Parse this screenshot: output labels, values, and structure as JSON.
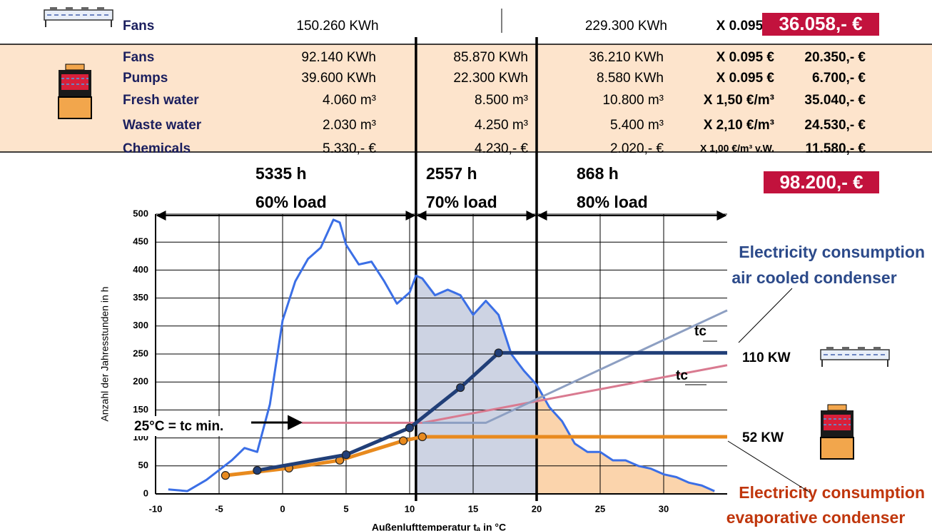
{
  "table": {
    "air_cooled_row": {
      "label": "Fans",
      "col_60": "150.260 KWh",
      "col_80": "229.300 KWh",
      "rate": "X 0.095 €",
      "cost": "36.058,- €"
    },
    "evaporative_rows": [
      [
        "Fans",
        "92.140 KWh",
        "85.870 KWh",
        "36.210 KWh",
        "X 0.095 €",
        "20.350,- €"
      ],
      [
        "Pumps",
        "39.600 KWh",
        "22.300 KWh",
        "8.580 KWh",
        "X 0.095 €",
        "6.700,- €"
      ],
      [
        "Fresh water",
        "4.060 m³",
        "8.500 m³",
        "10.800 m³",
        "X 1,50 €/m³",
        "35.040,- €"
      ],
      [
        "Waste water",
        "2.030 m³",
        "4.250 m³",
        "5.400 m³",
        "X 2,10 €/m³",
        "24.530,- €"
      ],
      [
        "Chemicals",
        "5.330,-  €",
        "4.230,- €",
        "2.020,- €",
        "X 1,00 €/m³ v.W.",
        "11.580,- €"
      ]
    ],
    "hours": [
      "5335 h",
      "2557 h",
      "868 h"
    ],
    "loads": [
      "60% load",
      "70% load",
      "80% load"
    ],
    "total": "98.200,- €"
  },
  "chart_data": {
    "type": "line",
    "x_label": "Außenlufttemperatur tₐ in °C",
    "y_label": "Anzahl der Jahresstunden in h",
    "xlim": [
      -10,
      35
    ],
    "ylim": [
      0,
      500
    ],
    "xticks": [
      -10,
      -5,
      0,
      5,
      10,
      15,
      20,
      25,
      30
    ],
    "yticks": [
      0,
      50,
      100,
      150,
      200,
      250,
      300,
      350,
      400,
      450,
      500
    ],
    "grid": true,
    "dividers": [
      10.5,
      20
    ],
    "regions": [
      {
        "from": 10.5,
        "to": 20,
        "color": "#cdd3e3"
      },
      {
        "from": 20,
        "to": 35,
        "color": "#fbd4ac"
      }
    ],
    "series": [
      {
        "color": "#3b6fe6",
        "markers": false,
        "x": [
          -9,
          -7.5,
          -6,
          -4,
          -3,
          -2,
          -1,
          0,
          1,
          2,
          3,
          4,
          4.5,
          5,
          6,
          7,
          8,
          9,
          10,
          10.5,
          11,
          12,
          13,
          14,
          15,
          16,
          17,
          18,
          19,
          20,
          21,
          22,
          23,
          24,
          25,
          26,
          27,
          28,
          29,
          30,
          31,
          32,
          33,
          34
        ],
        "values": [
          8,
          5,
          25,
          60,
          82,
          75,
          160,
          310,
          380,
          420,
          440,
          490,
          485,
          445,
          410,
          415,
          380,
          340,
          360,
          390,
          385,
          355,
          365,
          355,
          320,
          345,
          320,
          250,
          220,
          195,
          155,
          130,
          90,
          75,
          75,
          60,
          60,
          50,
          45,
          35,
          30,
          20,
          15,
          5
        ]
      },
      {
        "color": "#d97a90",
        "markers": false,
        "x": [
          1.5,
          11,
          35
        ],
        "values": [
          127,
          127,
          230
        ]
      },
      {
        "color": "#8d9fc2",
        "markers": false,
        "x": [
          11,
          16,
          35
        ],
        "values": [
          127,
          127,
          328
        ]
      },
      {
        "color": "#e88a1e",
        "markers": true,
        "x": [
          -4.5,
          0.5,
          4.5,
          9.5,
          11,
          35
        ],
        "values": [
          33,
          46,
          60,
          95,
          102,
          102
        ]
      },
      {
        "color": "#213f78",
        "markers": true,
        "x": [
          -2,
          5,
          10,
          14,
          17,
          35
        ],
        "values": [
          42,
          70,
          118,
          190,
          252,
          252
        ]
      }
    ],
    "annotations": {
      "air_title": "Electricity consumption",
      "air_sub": "air cooled condenser",
      "evap_title": "Electricity consumption",
      "evap_sub": "evaporative condenser",
      "tc_upper": "tc",
      "tc_lower": "tc",
      "air_power": "110 KW",
      "evap_power": "52 KW",
      "tc_min": "25°C = tc min."
    }
  }
}
